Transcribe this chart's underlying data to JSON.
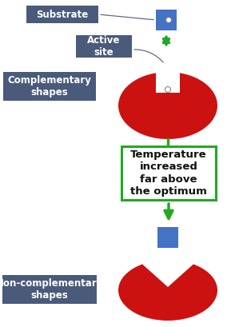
{
  "bg_color": "#ffffff",
  "enzyme_color": "#cc1111",
  "substrate_color": "#4472c4",
  "label_bg_color": "#4a5a7a",
  "label_text_color": "#ffffff",
  "arrow_color": "#22aa22",
  "temp_box_edge_color": "#22aa22",
  "temp_text_color": "#111111",
  "substrate_label": "Substrate",
  "active_site_label": "Active\nsite",
  "comp_label": "Complementary\nshapes",
  "noncomp_label": "Non-complementary\nshapes",
  "temp_label": "Temperature\nincreased\nfar above\nthe optimum",
  "label_fontsize": 8.5,
  "temp_fontsize": 9.5,
  "figw": 3.04,
  "figh": 4.09,
  "dpi": 100
}
